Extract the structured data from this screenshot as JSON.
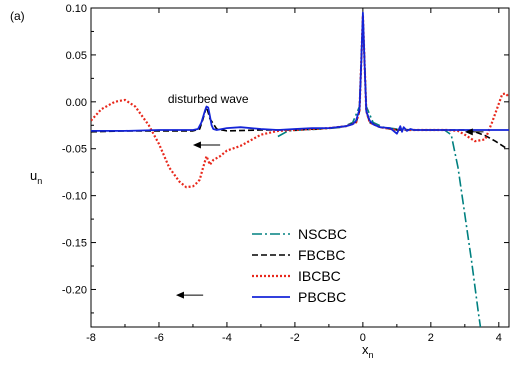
{
  "chart_data": {
    "type": "line",
    "panel_label": "(a)",
    "xlabel": "x",
    "xlabel_sub": "n",
    "ylabel": "u",
    "ylabel_sub": "n",
    "xlim": [
      -8,
      4.3
    ],
    "ylim": [
      -0.24,
      0.1
    ],
    "x_ticks": [
      -8,
      -6,
      -4,
      -2,
      0,
      2,
      4
    ],
    "y_ticks": [
      0.1,
      0.05,
      0.0,
      -0.05,
      -0.1,
      -0.15,
      -0.2
    ],
    "x_tick_labels": [
      "-8",
      "-6",
      "-4",
      "-2",
      "0",
      "2",
      "4"
    ],
    "y_tick_labels": [
      "0.10",
      "0.05",
      "0.00",
      "-0.05",
      "-0.10",
      "-0.15",
      "-0.20"
    ],
    "grid": false,
    "legend_position": "bottom-center",
    "annotations": [
      {
        "text": "disturbed wave",
        "x": -4.55,
        "y": -0.001
      }
    ],
    "arrows": [
      {
        "x_from": -4.2,
        "x_to": -5.0,
        "y": -0.046
      },
      {
        "x_from": -4.7,
        "x_to": -5.5,
        "y": -0.206
      },
      {
        "x_from": 3.55,
        "x_to": 3.0,
        "y": -0.032
      }
    ],
    "series": [
      {
        "name": "NSCBC",
        "color": "#008080",
        "dash": "10,3,2,3",
        "width": 1.6,
        "x": [
          -8,
          -6,
          -4,
          -3.2,
          -2.8,
          -2.5,
          -2.2,
          -1.8,
          -1.2,
          -0.6,
          -0.3,
          -0.1,
          0,
          0.1,
          0.3,
          0.6,
          1.0,
          1.5,
          2.0,
          2.4,
          2.6,
          2.8,
          3.0,
          3.2,
          3.4,
          3.5,
          3.6
        ],
        "y": [
          null,
          null,
          null,
          null,
          null,
          -0.037,
          -0.031,
          -0.03,
          -0.029,
          -0.027,
          -0.022,
          -0.005,
          0.09,
          -0.005,
          -0.022,
          -0.027,
          -0.029,
          -0.03,
          -0.03,
          -0.03,
          -0.035,
          -0.07,
          -0.12,
          -0.17,
          -0.225,
          -0.25,
          -0.27
        ]
      },
      {
        "name": "FBCBC",
        "color": "#000000",
        "dash": "6,3",
        "width": 1.6,
        "x": [
          -8,
          -7,
          -6,
          -5,
          -4.8,
          -4.7,
          -4.6,
          -4.5,
          -4.3,
          -4.0,
          -3.0,
          -2.0,
          -1.0,
          -0.5,
          -0.2,
          -0.1,
          0,
          0.1,
          0.2,
          0.5,
          1.0,
          1.5,
          2.0,
          2.5,
          3.0,
          3.3,
          3.6,
          3.9,
          4.2
        ],
        "y": [
          -0.032,
          -0.031,
          -0.031,
          -0.031,
          -0.029,
          -0.018,
          -0.005,
          -0.018,
          -0.029,
          -0.031,
          -0.03,
          -0.03,
          -0.028,
          -0.026,
          -0.022,
          -0.01,
          0.092,
          -0.01,
          -0.022,
          -0.027,
          -0.03,
          -0.03,
          -0.03,
          -0.03,
          -0.03,
          -0.032,
          -0.036,
          -0.042,
          -0.049
        ]
      },
      {
        "name": "IBCBC",
        "color": "#e8281c",
        "dash": "2,2",
        "width": 2.2,
        "x": [
          -8,
          -7.7,
          -7.3,
          -7.0,
          -6.7,
          -6.3,
          -6.0,
          -5.7,
          -5.4,
          -5.2,
          -5.0,
          -4.9,
          -4.8,
          -4.7,
          -4.6,
          -4.5,
          -4.4,
          -4.2,
          -4.0,
          -3.6,
          -3.3,
          -3.0,
          -2.5,
          -2.0,
          -1.0,
          -0.5,
          -0.2,
          -0.1,
          0,
          0.1,
          0.2,
          0.5,
          1.0,
          1.5,
          2.0,
          2.5,
          2.8,
          3.0,
          3.3,
          3.6,
          3.8,
          4.0,
          4.1,
          4.2,
          4.3
        ],
        "y": [
          -0.02,
          -0.008,
          0.0,
          0.002,
          -0.005,
          -0.025,
          -0.045,
          -0.07,
          -0.085,
          -0.091,
          -0.09,
          -0.087,
          -0.083,
          -0.07,
          -0.058,
          -0.067,
          -0.062,
          -0.058,
          -0.052,
          -0.047,
          -0.041,
          -0.035,
          -0.031,
          -0.03,
          -0.028,
          -0.026,
          -0.022,
          -0.01,
          0.092,
          -0.01,
          -0.022,
          -0.027,
          -0.03,
          -0.03,
          -0.03,
          -0.03,
          -0.031,
          -0.035,
          -0.042,
          -0.04,
          -0.022,
          -0.002,
          0.008,
          0.009,
          0.005
        ]
      },
      {
        "name": "PBCBC",
        "color": "#1424d8",
        "dash": "",
        "width": 1.8,
        "x": [
          -8,
          -7,
          -6,
          -5,
          -4.85,
          -4.75,
          -4.65,
          -4.6,
          -4.55,
          -4.5,
          -4.45,
          -4.4,
          -4.3,
          -4.0,
          -3.6,
          -3.0,
          -2.5,
          -2.0,
          -1.5,
          -1.0,
          -0.5,
          -0.3,
          -0.2,
          -0.1,
          -0.05,
          0,
          0.05,
          0.1,
          0.2,
          0.3,
          0.5,
          0.8,
          1.0,
          1.1,
          1.15,
          1.2,
          1.3,
          1.4,
          1.5,
          2.0,
          2.5,
          3.0,
          3.5,
          4.0,
          4.3
        ],
        "y": [
          -0.031,
          -0.031,
          -0.03,
          -0.03,
          -0.029,
          -0.022,
          -0.01,
          -0.005,
          -0.006,
          -0.015,
          -0.025,
          -0.029,
          -0.03,
          -0.028,
          -0.027,
          -0.029,
          -0.03,
          -0.029,
          -0.028,
          -0.028,
          -0.026,
          -0.024,
          -0.02,
          -0.008,
          0.04,
          0.095,
          0.04,
          -0.01,
          -0.02,
          -0.024,
          -0.027,
          -0.028,
          -0.034,
          -0.026,
          -0.032,
          -0.027,
          -0.031,
          -0.029,
          -0.03,
          -0.03,
          -0.03,
          -0.03,
          -0.03,
          -0.03,
          -0.03
        ]
      }
    ]
  }
}
